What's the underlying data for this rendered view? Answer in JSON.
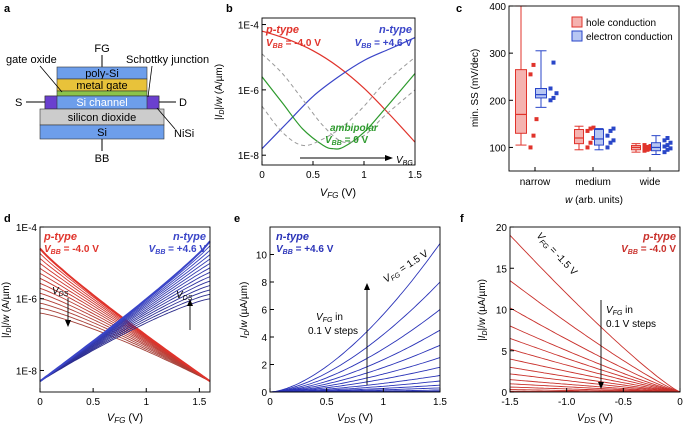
{
  "figure": {
    "panel_labels": [
      "a",
      "b",
      "c",
      "d",
      "e",
      "f"
    ]
  },
  "device": {
    "top_terminal": "FG",
    "bottom_terminal": "BB",
    "source": "S",
    "drain": "D",
    "layers": [
      "poly-Si",
      "metal gate",
      "Si channel",
      "silicon dioxide",
      "Si"
    ],
    "callouts": {
      "gate_oxide": "gate oxide",
      "schottky": "Schottky junction",
      "nisi": "NiSi"
    },
    "colors": {
      "poly": "#6d9eeb",
      "metal": "#e8c23a",
      "channel": "#6d9eeb",
      "oxide": "#cccccc",
      "si": "#6d9eeb",
      "contact": "#6a3fcf"
    }
  },
  "chart_data": [
    {
      "id": "b",
      "type": "line",
      "xlabel": "V_FG (V)",
      "ylabel": "|I_D|/w (A/µm)",
      "xlim": [
        0,
        1.5
      ],
      "ylim_log10": [
        -8.3,
        -3.8
      ],
      "x_ticks": [
        "0",
        "0.5",
        "1",
        "1.5"
      ],
      "y_ticks": [
        "1E-8",
        "1E-6",
        "1E-4"
      ],
      "annotations": {
        "p_title": "p-type",
        "p_vbb": "V_BB = -4.0 V",
        "n_title": "n-type",
        "n_vbb": "V_BB = +4.6 V",
        "amb_title": "ambipolar",
        "amb_vbb": "V_BB = 0 V",
        "sweep": "V_BG"
      },
      "series": [
        {
          "name": "p-type",
          "color": "#e0332b",
          "x": [
            0,
            0.25,
            0.5,
            0.75,
            1.0,
            1.25,
            1.5
          ],
          "log10_y": [
            -4.2,
            -4.45,
            -4.8,
            -5.3,
            -5.95,
            -6.75,
            -7.6
          ]
        },
        {
          "name": "n-type",
          "color": "#3a45c8",
          "x": [
            0,
            0.25,
            0.5,
            0.75,
            1.0,
            1.25,
            1.5
          ],
          "log10_y": [
            -7.8,
            -7.0,
            -6.2,
            -5.6,
            -5.1,
            -4.75,
            -4.4
          ]
        },
        {
          "name": "ambipolar",
          "color": "#2d9a2d",
          "x": [
            0,
            0.2,
            0.4,
            0.6,
            0.7,
            0.8,
            1.0,
            1.2,
            1.5
          ],
          "log10_y": [
            -5.6,
            -6.4,
            -7.2,
            -7.7,
            -7.8,
            -7.75,
            -7.3,
            -6.6,
            -5.5
          ]
        },
        {
          "name": "intermediate-1",
          "color": "#9a9a9a",
          "dashed": true,
          "x": [
            0,
            0.2,
            0.4,
            0.6,
            0.8,
            1.0,
            1.2,
            1.5
          ],
          "log10_y": [
            -4.9,
            -5.5,
            -6.3,
            -7.1,
            -7.6,
            -7.4,
            -6.8,
            -6.0
          ]
        },
        {
          "name": "intermediate-2",
          "color": "#9a9a9a",
          "dashed": true,
          "x": [
            0,
            0.2,
            0.4,
            0.6,
            0.8,
            1.0,
            1.2,
            1.5
          ],
          "log10_y": [
            -6.5,
            -7.3,
            -7.7,
            -7.5,
            -7.1,
            -6.5,
            -5.8,
            -5.0
          ]
        }
      ]
    },
    {
      "id": "c",
      "type": "box",
      "ylabel": "min. SS (mV/dec)",
      "xlabel": "w (arb. units)",
      "ylim": [
        50,
        400
      ],
      "y_ticks": [
        "100",
        "200",
        "300",
        "400"
      ],
      "categories": [
        "narrow",
        "medium",
        "wide"
      ],
      "legend": [
        "hole conduction",
        "electron conduction"
      ],
      "series": [
        {
          "name": "hole conduction",
          "color": "#e0332b",
          "fill": "#f5b3b0",
          "boxes": [
            {
              "min": 105,
              "q1": 130,
              "median": 170,
              "q3": 265,
              "max": 400,
              "points": [
                100,
                125,
                160,
                255,
                275
              ]
            },
            {
              "min": 95,
              "q1": 108,
              "median": 120,
              "q3": 138,
              "max": 145,
              "points": [
                100,
                110,
                120,
                135,
                140,
                142
              ]
            },
            {
              "min": 90,
              "q1": 95,
              "median": 100,
              "q3": 104,
              "max": 108,
              "points": [
                93,
                95,
                97,
                99,
                101,
                103,
                105
              ]
            }
          ]
        },
        {
          "name": "electron conduction",
          "color": "#2946c8",
          "fill": "#b7c6f3",
          "boxes": [
            {
              "min": 185,
              "q1": 205,
              "median": 212,
              "q3": 225,
              "max": 305,
              "points": [
                200,
                205,
                215,
                225,
                280
              ]
            },
            {
              "min": 95,
              "q1": 105,
              "median": 118,
              "q3": 138,
              "max": 140,
              "points": [
                100,
                110,
                115,
                125,
                135,
                140
              ]
            },
            {
              "min": 85,
              "q1": 93,
              "median": 100,
              "q3": 110,
              "max": 125,
              "points": [
                90,
                95,
                98,
                102,
                105,
                110,
                115,
                120
              ]
            }
          ]
        }
      ]
    },
    {
      "id": "d",
      "type": "line",
      "xlabel": "V_FG (V)",
      "ylabel": "|I_D|/w (A/µm)",
      "xlim": [
        0,
        1.6
      ],
      "ylim_log10": [
        -8.6,
        -4.0
      ],
      "x_ticks": [
        "0",
        "0.5",
        "1",
        "1.5"
      ],
      "y_ticks": [
        "1E-8",
        "1E-6",
        "1E-4"
      ],
      "annotations": {
        "p_title": "p-type",
        "p_vbb": "V_BB = -4.0 V",
        "n_title": "n-type",
        "n_vbb": "V_BB = +4.6 V",
        "vds_left": "V_DS",
        "vds_right": "V_DS"
      },
      "families": [
        {
          "name": "p-type family",
          "color_dark": "#a3423a",
          "color_bright": "#e0332b",
          "count": 14,
          "x_start": 0,
          "x_end": 1.6,
          "log10_y_start_top": -4.6,
          "log10_y_start_bottom": -6.4,
          "log10_y_end": -8.3
        },
        {
          "name": "n-type family",
          "color_dark": "#2a2a8a",
          "color_bright": "#3a45c8",
          "count": 14,
          "x_start": 0,
          "x_end": 1.6,
          "log10_y_start": -8.3,
          "log10_y_end_top": -4.4,
          "log10_y_end_bottom": -6.0
        }
      ]
    },
    {
      "id": "e",
      "type": "line",
      "xlabel": "V_DS (V)",
      "ylabel": "I_D/w (µA/µm)",
      "xlim": [
        0,
        1.5
      ],
      "ylim": [
        0,
        12
      ],
      "x_ticks": [
        "0",
        "0.5",
        "1",
        "1.5"
      ],
      "y_ticks": [
        "0",
        "2",
        "4",
        "6",
        "8",
        "10"
      ],
      "annotations": {
        "title": "n-type",
        "vbb": "V_BB = +4.6 V",
        "curve_label": "V_FG = 1.5 V",
        "step_label_1": "V_FG in",
        "step_label_2": "0.1 V steps"
      },
      "color": "#2a33b8",
      "family_top_values_at_x_end": [
        10.8,
        8.0,
        6.0,
        4.5,
        3.4,
        2.5,
        1.8,
        1.2,
        0.8,
        0.5,
        0.3,
        0.15,
        0.06,
        0.02
      ]
    },
    {
      "id": "f",
      "type": "line",
      "xlabel": "V_DS (V)",
      "ylabel": "|I_D|/w (µA/µm)",
      "xlim": [
        -1.5,
        0
      ],
      "ylim": [
        0,
        20
      ],
      "x_ticks": [
        "-1.5",
        "-1.0",
        "-0.5",
        "0"
      ],
      "y_ticks": [
        "0",
        "5",
        "10",
        "15",
        "20"
      ],
      "annotations": {
        "title": "p-type",
        "vbb": "V_BB = -4.0 V",
        "curve_label": "V_FG = -1.5 V",
        "step_label_1": "V_FG in",
        "step_label_2": "0.1 V steps"
      },
      "color": "#c9302b",
      "family_values_at_x_start": [
        19.0,
        13.5,
        10.2,
        8.0,
        6.5,
        5.2,
        4.0,
        3.0,
        2.2,
        1.5,
        1.0,
        0.6,
        0.3,
        0.1
      ]
    }
  ]
}
